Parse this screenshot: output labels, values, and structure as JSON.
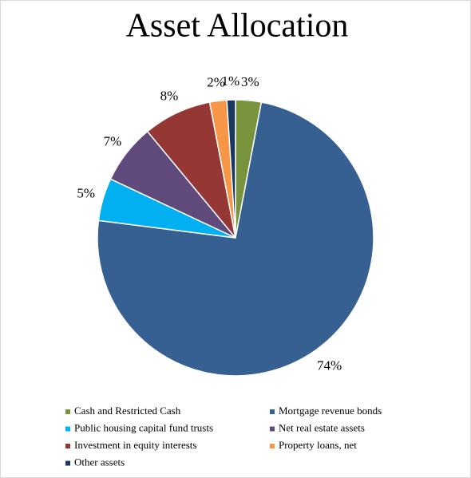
{
  "chart_data": {
    "type": "pie",
    "title": "Asset Allocation",
    "categories": [
      "Cash and Restricted Cash",
      "Mortgage revenue bonds",
      "Public housing capital fund trusts",
      "Net real estate assets",
      "Investment in equity interests",
      "Property loans, net",
      "Other assets"
    ],
    "values": [
      3,
      74,
      5,
      7,
      8,
      2,
      1
    ],
    "value_labels": [
      "3%",
      "74%",
      "5%",
      "7%",
      "8%",
      "2%",
      "1%"
    ],
    "colors": [
      "#77933c",
      "#376092",
      "#00b0f0",
      "#604a7b",
      "#953735",
      "#f79646",
      "#17375e"
    ],
    "legend": "bottom"
  }
}
